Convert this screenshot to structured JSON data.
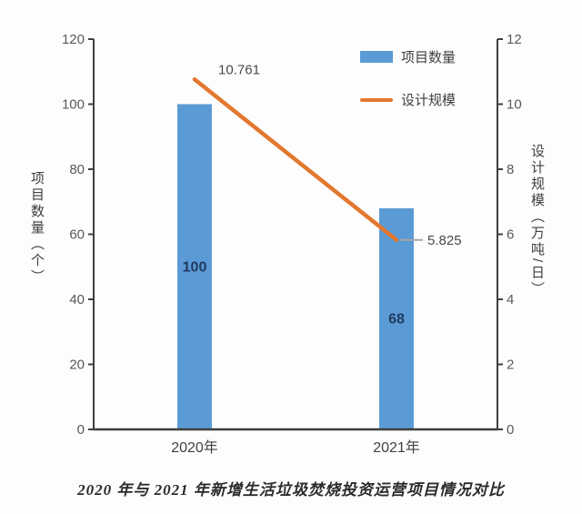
{
  "chart_data": {
    "type": "bar",
    "subtype": "bar-with-line-dual-axis",
    "title": "2020 年与 2021 年新增生活垃圾焚烧投资运营项目情况对比",
    "categories": [
      "2020年",
      "2021年"
    ],
    "series": [
      {
        "name": "项目数量",
        "type": "bar",
        "axis": "left",
        "values": [
          100,
          68
        ],
        "value_labels": [
          "100",
          "68"
        ],
        "color": "#5b9bd5",
        "label_color": "#1f3a5f"
      },
      {
        "name": "设计规模",
        "type": "line",
        "axis": "right",
        "values": [
          10.761,
          5.825
        ],
        "value_labels": [
          "10.761",
          "5.825"
        ],
        "color": "#e2782f",
        "label_color": "#4a4a4a"
      }
    ],
    "left_axis": {
      "title": "项目数量（个）",
      "min": 0,
      "max": 120,
      "ticks": [
        0,
        20,
        40,
        60,
        80,
        100,
        120
      ]
    },
    "right_axis": {
      "title": "设计规模（万吨/日）",
      "min": 0,
      "max": 12,
      "ticks": [
        0,
        2,
        4,
        6,
        8,
        10,
        12
      ]
    },
    "legend": [
      {
        "label": "项目数量",
        "swatch": "bar"
      },
      {
        "label": "设计规模",
        "swatch": "line"
      }
    ],
    "grid": "off",
    "legend_position": "top-right",
    "axis_color": "#3f3f3f",
    "tick_label_color": "#595959",
    "category_label_color": "#404040",
    "leader_color": "#a6a6a6"
  }
}
